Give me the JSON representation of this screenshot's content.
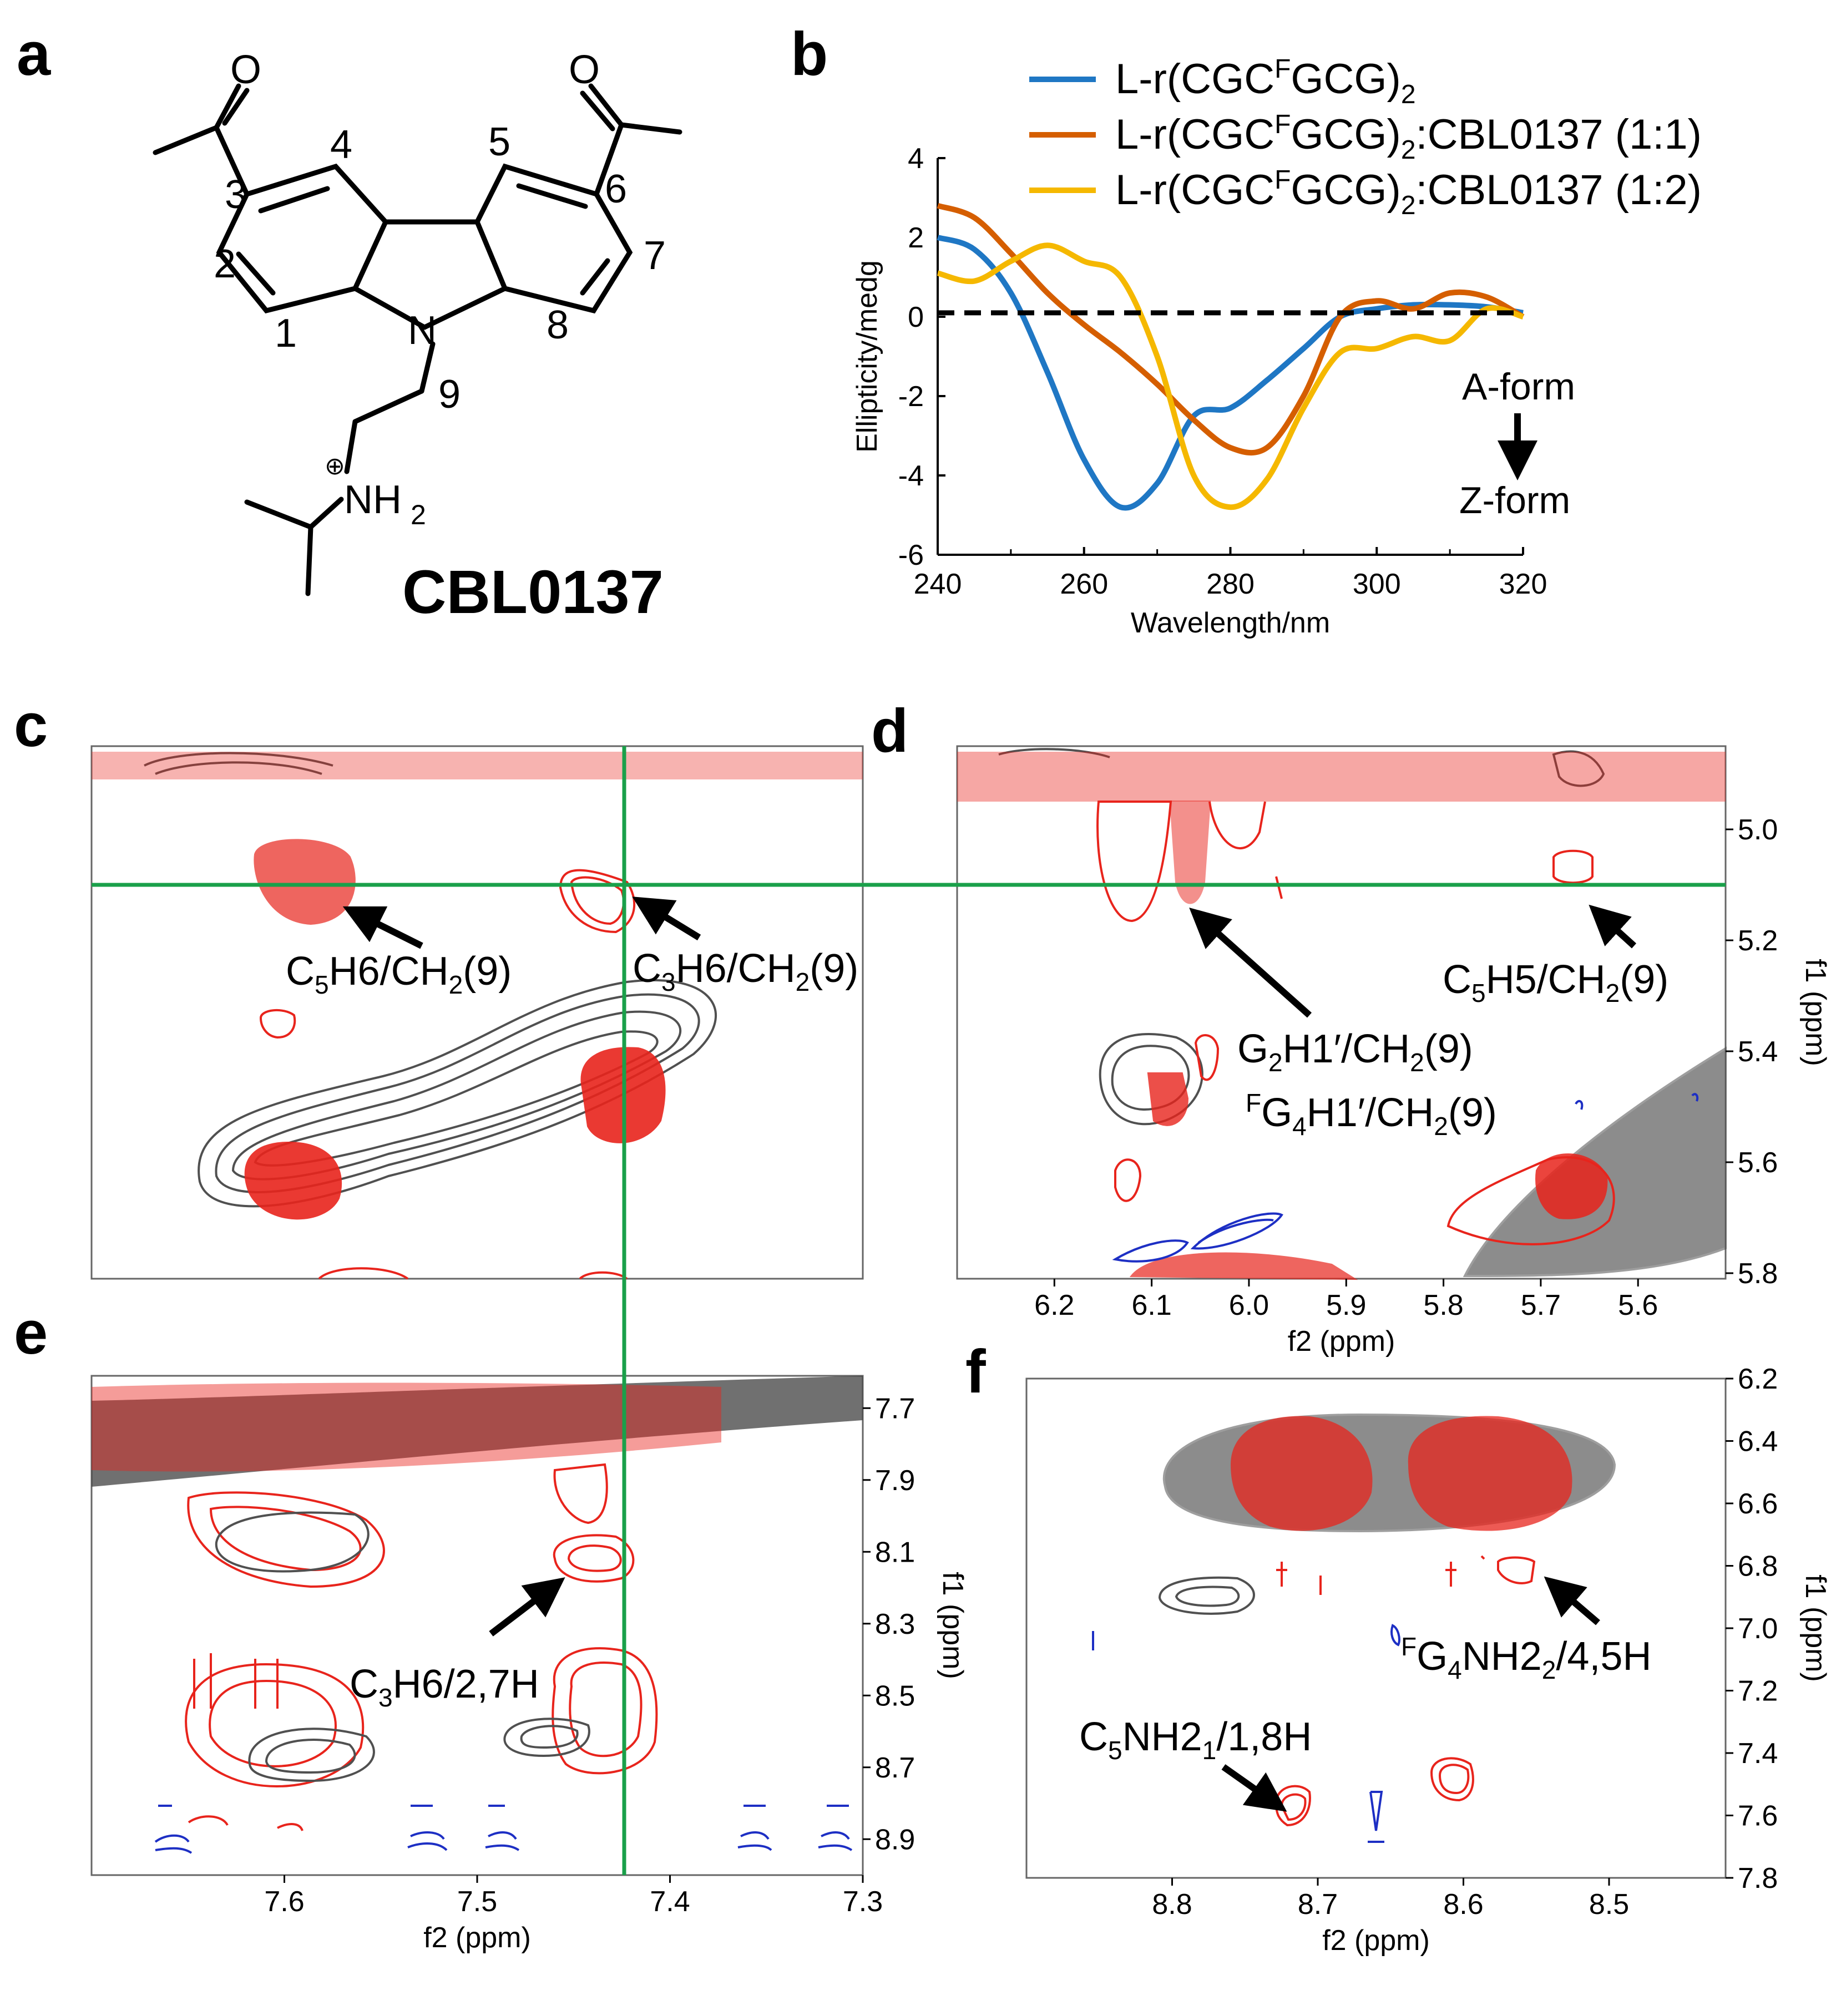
{
  "panels": {
    "a": {
      "label": "a",
      "compound": "CBL0137",
      "atoms": {
        "n1": "1",
        "n2": "2",
        "n3": "3",
        "n4": "4",
        "n5": "5",
        "n6": "6",
        "n7": "7",
        "n8": "8",
        "n9": "9",
        "N": "N",
        "O1": "O",
        "O2": "O",
        "NH": "NH",
        "sub2": "2",
        "plus": "⊕"
      }
    },
    "b": {
      "label": "b"
    },
    "c": {
      "label": "c"
    },
    "d": {
      "label": "d"
    },
    "e": {
      "label": "e"
    },
    "f": {
      "label": "f"
    }
  },
  "chart_data": {
    "type": "line",
    "xlabel": "Wavelength/nm",
    "ylabel": "Ellipticity/medg",
    "xlim": [
      240,
      320
    ],
    "ylim": [
      -6,
      4
    ],
    "xticks": [
      "240",
      "260",
      "280",
      "300",
      "320"
    ],
    "yticks": [
      "4",
      "2",
      "0",
      "-2",
      "-4",
      "-6"
    ],
    "x": [
      240,
      245,
      250,
      255,
      260,
      265,
      270,
      275,
      280,
      285,
      290,
      295,
      300,
      305,
      310,
      315,
      320
    ],
    "series": [
      {
        "name": "L-r(CGC",
        "name_sup": "F",
        "name_mid": "GCG)",
        "name_sub": "2",
        "name_tail": "",
        "color": "#1f77c4",
        "values": [
          2.0,
          1.7,
          0.6,
          -1.4,
          -3.6,
          -4.8,
          -4.2,
          -2.5,
          -2.3,
          -1.6,
          -0.8,
          0.0,
          0.2,
          0.3,
          0.3,
          0.25,
          0.1
        ]
      },
      {
        "name": "L-r(CGC",
        "name_sup": "F",
        "name_mid": "GCG)",
        "name_sub": "2",
        "name_tail": ":CBL0137 (1:1)",
        "color": "#d55e00",
        "values": [
          2.8,
          2.5,
          1.6,
          0.6,
          -0.2,
          -0.9,
          -1.7,
          -2.6,
          -3.3,
          -3.3,
          -2.0,
          0.0,
          0.4,
          0.2,
          0.6,
          0.5,
          0.0
        ]
      },
      {
        "name": "L-r(CGC",
        "name_sup": "F",
        "name_mid": "GCG)",
        "name_sub": "2",
        "name_tail": ":CBL0137 (1:2)",
        "color": "#f5b800",
        "values": [
          1.1,
          0.9,
          1.4,
          1.8,
          1.4,
          1.0,
          -1.0,
          -4.0,
          -4.8,
          -4.1,
          -2.3,
          -0.9,
          -0.8,
          -0.5,
          -0.6,
          0.2,
          0.0
        ]
      },
      {
        "name": "",
        "color": "#000000",
        "dashed": true,
        "values": [
          0.1,
          0.1,
          0.1,
          0.1,
          0.1,
          0.1,
          0.1,
          0.1,
          0.1,
          0.1,
          0.1,
          0.1,
          0.1,
          0.1,
          0.1,
          0.1,
          0.1
        ]
      }
    ],
    "legend_colors": [
      "#1f77c4",
      "#d55e00",
      "#f5b800"
    ],
    "annotation_top": "A-form",
    "annotation_bottom": "Z-form",
    "grid": false
  },
  "nmr": {
    "d_xticks": [
      "6.2",
      "6.1",
      "6.0",
      "5.9",
      "5.8",
      "5.7",
      "5.6"
    ],
    "d_yticks": [
      "5.0",
      "5.2",
      "5.4",
      "5.6",
      "5.8"
    ],
    "e_xticks": [
      "7.6",
      "7.5",
      "7.4",
      "7.3"
    ],
    "e_yticks": [
      "7.7",
      "7.9",
      "8.1",
      "8.3",
      "8.5",
      "8.7",
      "8.9"
    ],
    "f_xticks": [
      "8.8",
      "8.7",
      "8.6",
      "8.5"
    ],
    "f_yticks": [
      "6.2",
      "6.4",
      "6.6",
      "6.8",
      "7.0",
      "7.2",
      "7.4",
      "7.6",
      "7.8"
    ],
    "f2_label": "f2 (ppm)",
    "f1_label": "f1 (ppm)",
    "ann_c1": {
      "a": "C",
      "b": "5",
      "c": "H6/CH",
      "d": "2",
      "e": "(9)"
    },
    "ann_c2": {
      "a": "C",
      "b": "3",
      "c": "H6/CH",
      "d": "2",
      "e": "(9)"
    },
    "ann_d1": {
      "a": "C",
      "b": "5",
      "c": "H5/CH",
      "d": "2",
      "e": "(9)"
    },
    "ann_d2": {
      "a": "G",
      "b": "2",
      "c": "H1′/CH",
      "d": "2",
      "e": "(9)"
    },
    "ann_d3": {
      "pre": "F",
      "a": "G",
      "b": "4",
      "c": "H1′/CH",
      "d": "2",
      "e": "(9)"
    },
    "ann_e1": {
      "a": "C",
      "b": "3",
      "c": "H6/2,7H"
    },
    "ann_f1": {
      "pre": "F",
      "a": "G",
      "b": "4",
      "c": "NH2",
      "d": "2",
      "e": "/4,5H"
    },
    "ann_f2": {
      "a": "C",
      "b": "5",
      "c": "NH2",
      "d": "1",
      "e": "/1,8H"
    }
  },
  "colors": {
    "red": "#e8241c",
    "grey": "#505050",
    "blue": "#1d2fc4",
    "green": "#1aa04a"
  }
}
